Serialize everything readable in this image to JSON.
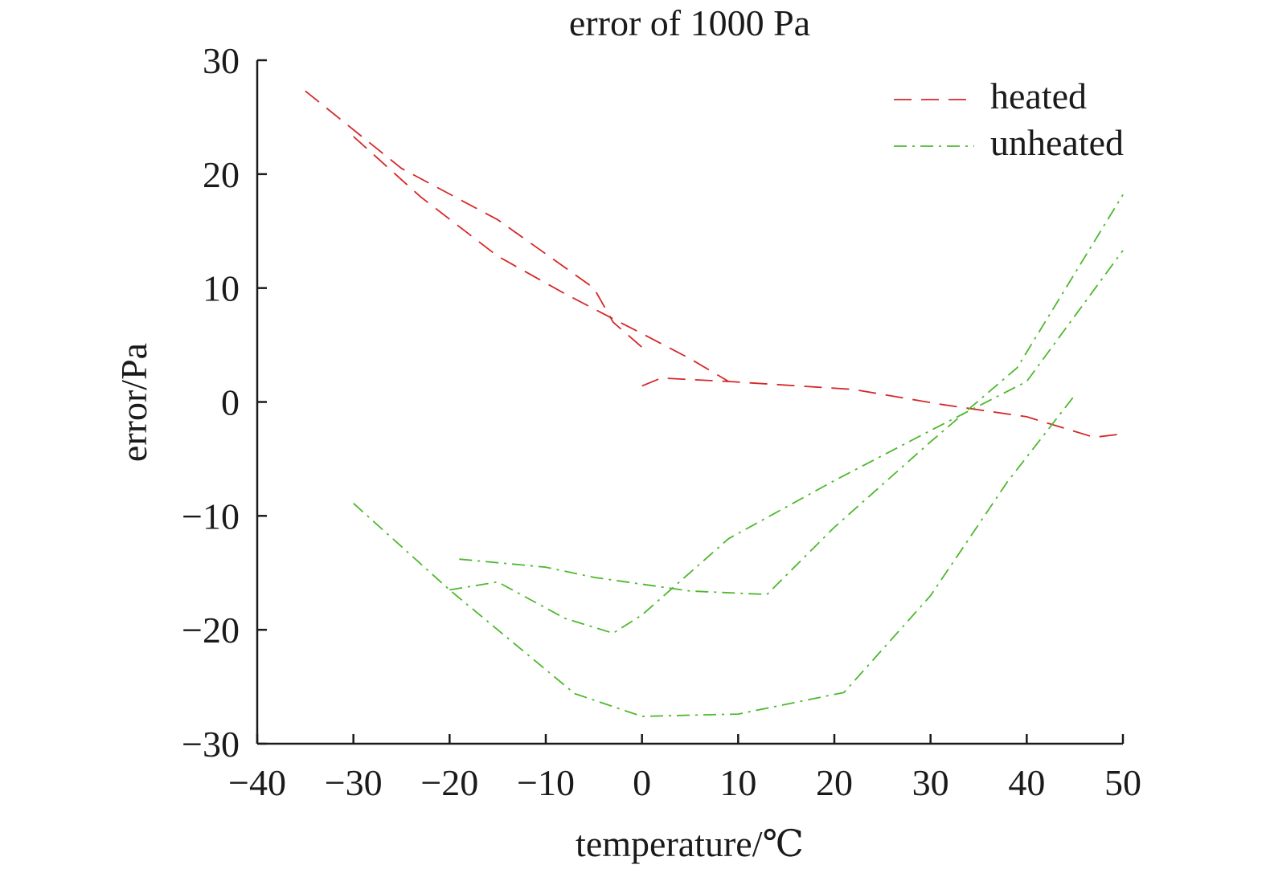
{
  "chart_data": {
    "type": "line",
    "title": "error of 1000 Pa",
    "xlabel": "temperature/℃",
    "ylabel": "error/Pa",
    "xlim": [
      -40,
      50
    ],
    "ylim": [
      -30,
      30
    ],
    "xticks": [
      -40,
      -30,
      -20,
      -10,
      0,
      10,
      20,
      30,
      40,
      50
    ],
    "yticks": [
      -30,
      -20,
      -10,
      0,
      10,
      20,
      30
    ],
    "xtick_labels": [
      "−40",
      "−30",
      "−20",
      "−10",
      "0",
      "10",
      "20",
      "30",
      "40",
      "50"
    ],
    "ytick_labels": [
      "−30",
      "−20",
      "−10",
      "0",
      "10",
      "20",
      "30"
    ],
    "grid": false,
    "legend_position": "top-right",
    "series": [
      {
        "name": "heated",
        "color": "#d62728",
        "dash": "dashed",
        "segments": [
          {
            "x": [
              -35,
              -25,
              -15,
              -5,
              -3,
              0
            ],
            "y": [
              27.3,
              20.5,
              16.0,
              10.0,
              7.0,
              4.8
            ]
          },
          {
            "x": [
              -30,
              -23,
              -15,
              -8,
              -3,
              0,
              5,
              9
            ],
            "y": [
              23.3,
              18.0,
              12.8,
              9.5,
              7.3,
              6.0,
              3.8,
              1.8
            ]
          },
          {
            "x": [
              0,
              2,
              9,
              22,
              31,
              40,
              47,
              50
            ],
            "y": [
              1.4,
              2.1,
              1.8,
              1.1,
              -0.2,
              -1.3,
              -3.1,
              -2.8
            ]
          }
        ]
      },
      {
        "name": "unheated",
        "color": "#4db82e",
        "dash": "dashdot",
        "segments": [
          {
            "x": [
              -30,
              -20,
              -7,
              0,
              5,
              10,
              21,
              30,
              38,
              45
            ],
            "y": [
              -8.9,
              -16.5,
              -25.6,
              -27.6,
              -27.5,
              -27.4,
              -25.5,
              -17.0,
              -7.0,
              0.6
            ]
          },
          {
            "x": [
              -20,
              -15,
              -8,
              -3,
              0,
              9,
              20,
              30,
              40,
              50
            ],
            "y": [
              -16.5,
              -15.8,
              -19.0,
              -20.3,
              -18.7,
              -12.0,
              -6.9,
              -2.5,
              1.8,
              13.3
            ]
          },
          {
            "x": [
              -19,
              -10,
              -5,
              5,
              13,
              20,
              30,
              39,
              50
            ],
            "y": [
              -13.8,
              -14.5,
              -15.4,
              -16.6,
              -16.9,
              -11.0,
              -3.5,
              3.0,
              18.2
            ]
          }
        ]
      }
    ]
  }
}
